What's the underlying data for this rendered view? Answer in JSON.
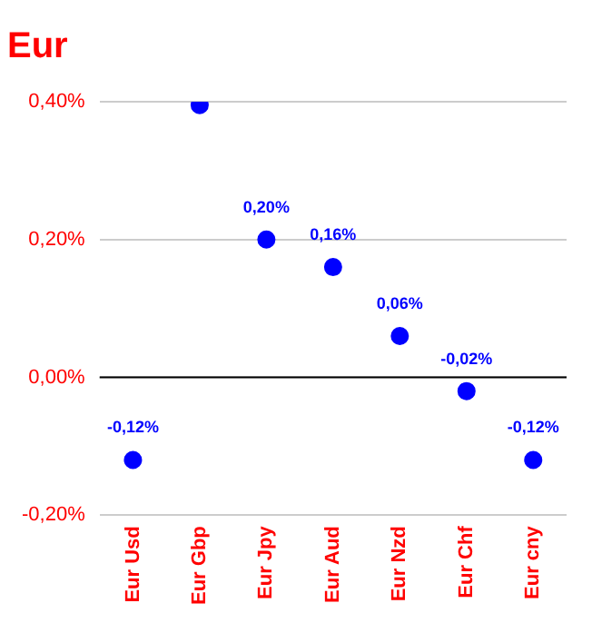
{
  "chart_data": {
    "type": "scatter",
    "title": "Eur",
    "categories": [
      "Eur Usd",
      "Eur Gbp",
      "Eur Jpy",
      "Eur Aud",
      "Eur Nzd",
      "Eur Chf",
      "Eur cny"
    ],
    "values": [
      -0.12,
      0.395,
      0.2,
      0.16,
      0.06,
      -0.02,
      -0.12
    ],
    "value_labels": [
      "-0,12%",
      null,
      "0,20%",
      "0,16%",
      "0,06%",
      "-0,02%",
      "-0,12%"
    ],
    "color": "#0000ff",
    "marker": "circle",
    "ylim": [
      -0.2,
      0.4
    ],
    "yticks": [
      {
        "value": -0.2,
        "label": "-0,20%"
      },
      {
        "value": 0,
        "label": "0,00%"
      },
      {
        "value": 0.2,
        "label": "0,20%"
      },
      {
        "value": 0.4,
        "label": "0,40%"
      }
    ],
    "ref_lines": [
      {
        "axis": "y",
        "value": 0,
        "color": "#000000"
      }
    ],
    "grid": "y",
    "legend": false
  }
}
